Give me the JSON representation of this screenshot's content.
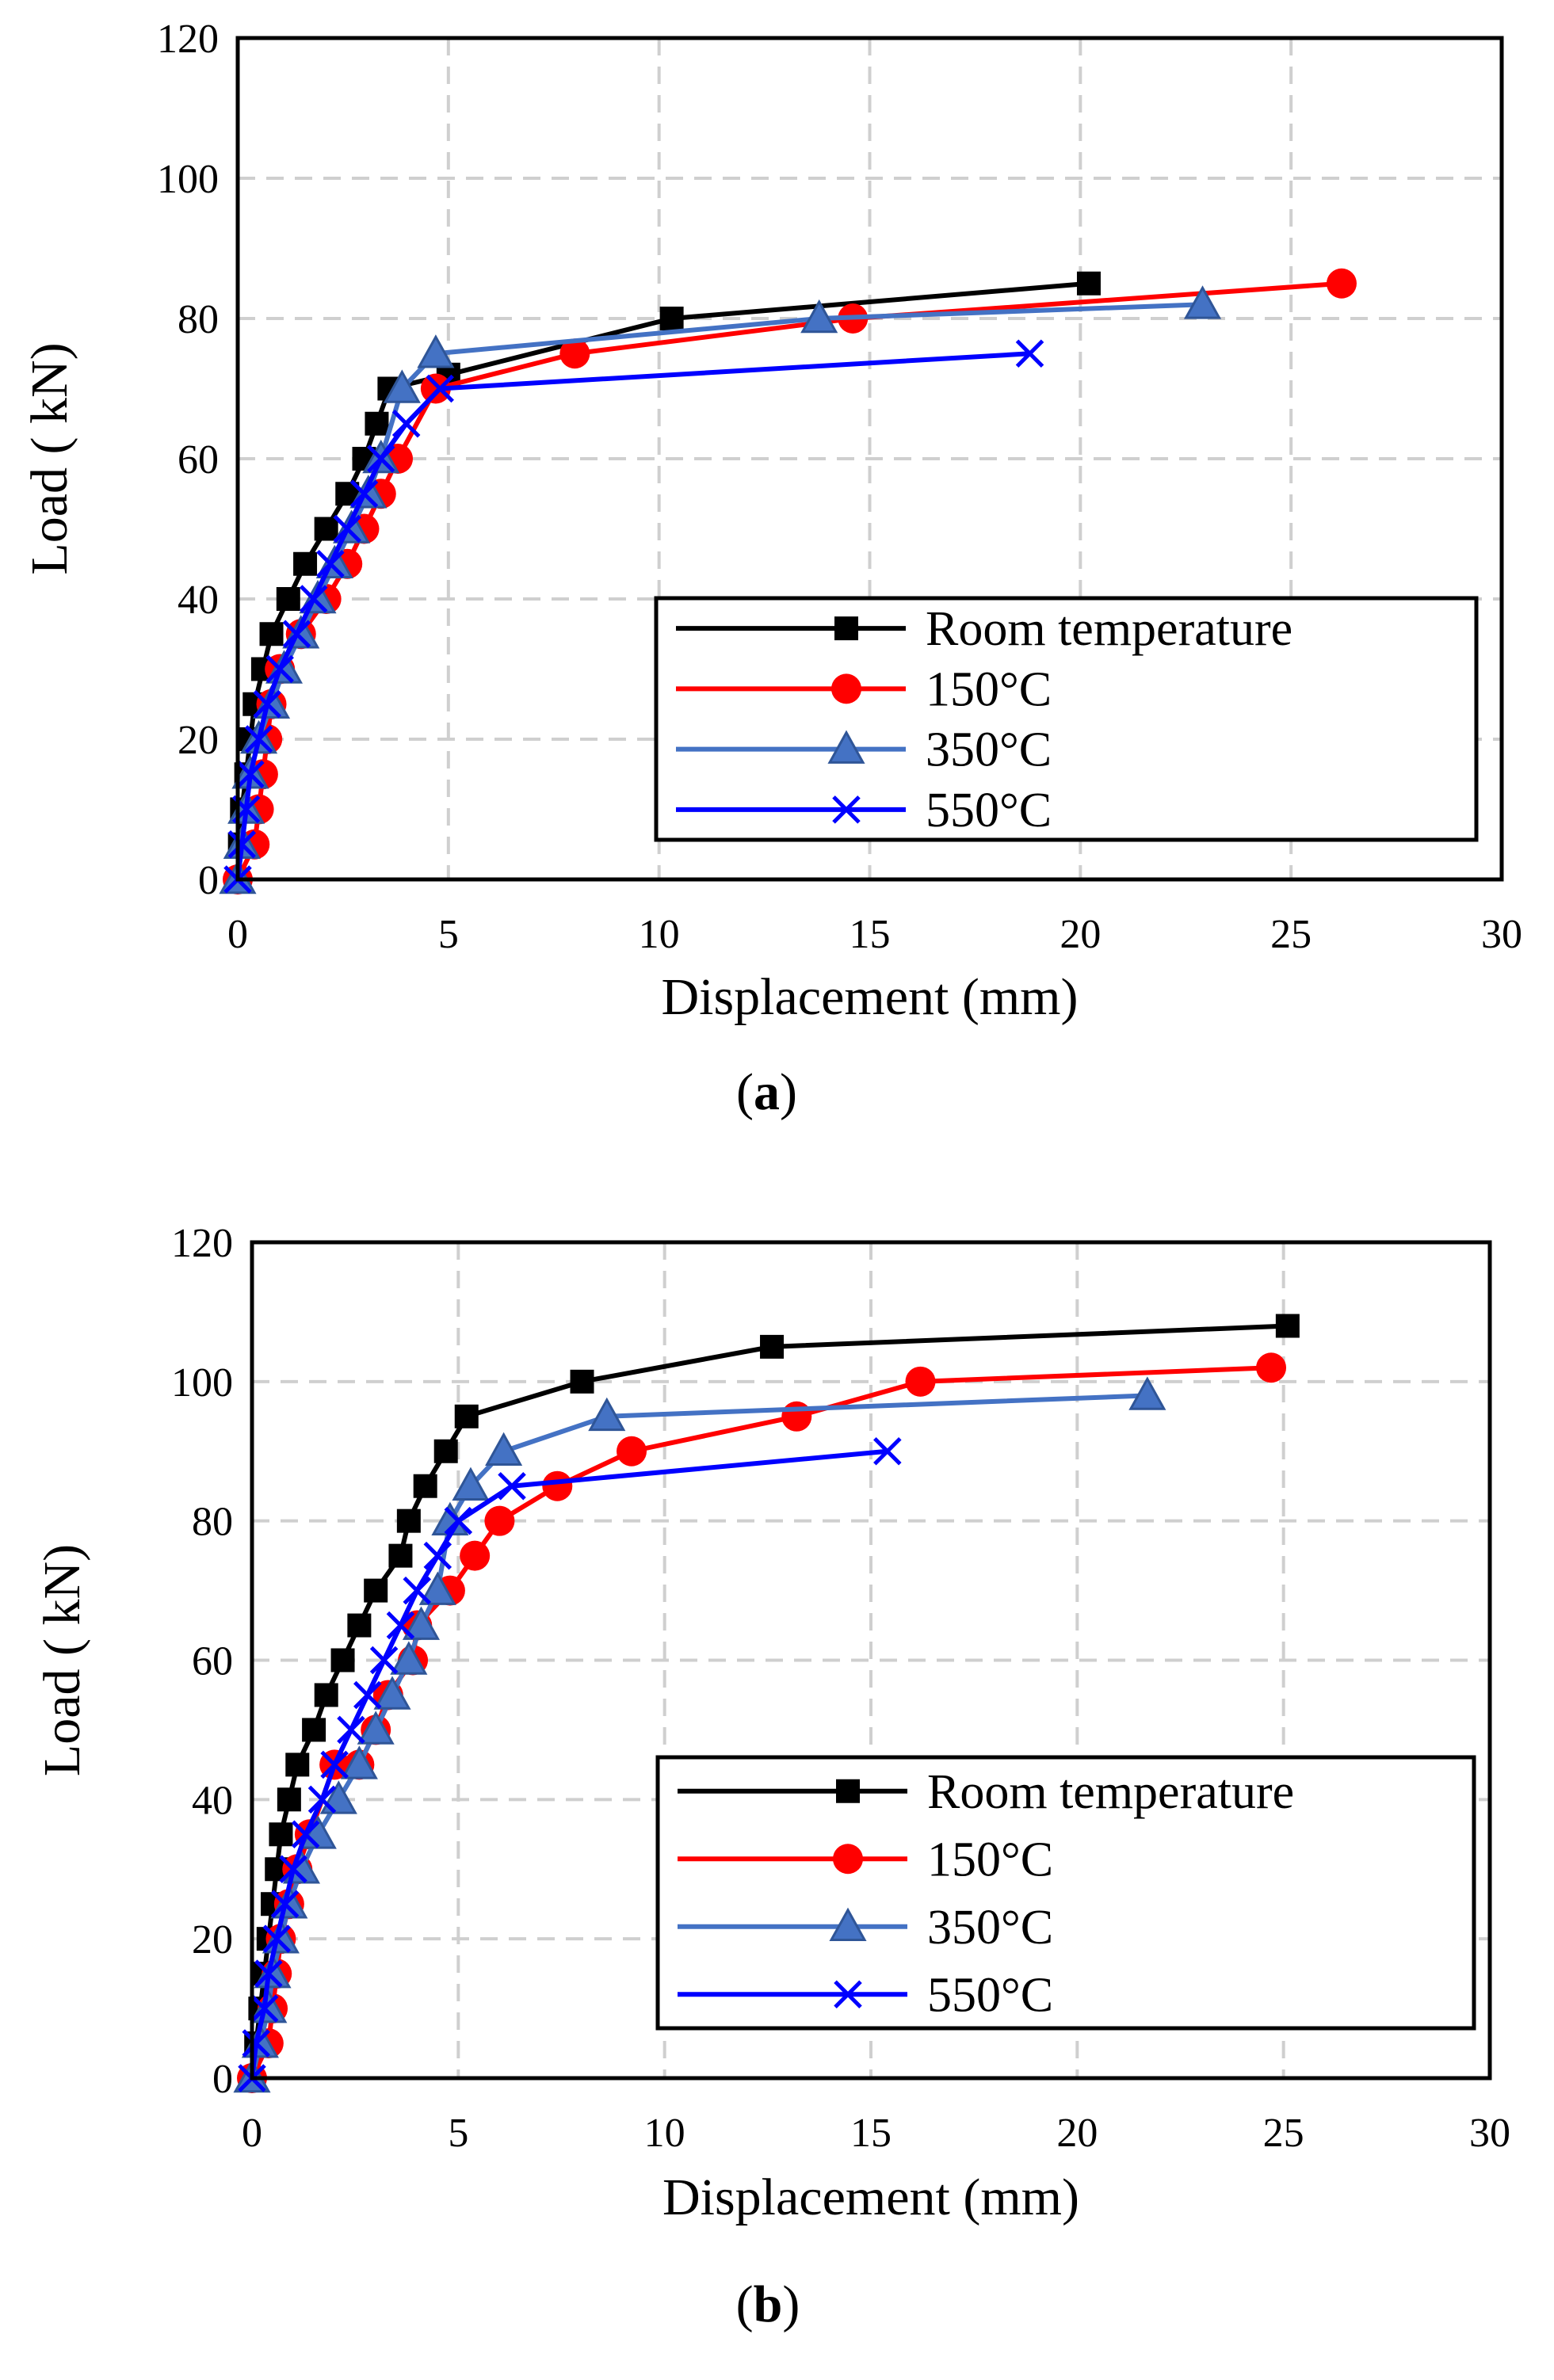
{
  "chart_data": [
    {
      "type": "line",
      "panel_label": "a",
      "xlabel": "Displacement (mm)",
      "ylabel": "Load ( kN)",
      "xlim": [
        0,
        30
      ],
      "ylim": [
        0,
        120
      ],
      "x_ticks": [
        0,
        5,
        10,
        15,
        20,
        25,
        30
      ],
      "y_ticks": [
        0,
        20,
        40,
        60,
        80,
        100,
        120
      ],
      "grid": "dashed",
      "legend_position": "bottom-right",
      "series": [
        {
          "name": "Room temperature",
          "color": "#000000",
          "marker": "square",
          "x": [
            0.0,
            0.05,
            0.1,
            0.2,
            0.3,
            0.4,
            0.6,
            0.8,
            1.2,
            1.6,
            2.1,
            2.6,
            3.0,
            3.3,
            3.6,
            5.0,
            10.3,
            20.2
          ],
          "y": [
            0,
            5,
            10,
            15,
            20,
            25,
            30,
            35,
            40,
            45,
            50,
            55,
            60,
            65,
            70,
            72,
            80,
            85
          ]
        },
        {
          "name": "150°C",
          "color": "#ff0000",
          "marker": "circle",
          "x": [
            0.0,
            0.4,
            0.5,
            0.6,
            0.7,
            0.8,
            1.0,
            1.5,
            2.1,
            2.6,
            3.0,
            3.4,
            3.8,
            4.7,
            8.0,
            14.6,
            26.2
          ],
          "y": [
            0,
            5,
            10,
            15,
            20,
            25,
            30,
            35,
            40,
            45,
            50,
            55,
            60,
            70,
            75,
            80,
            85
          ]
        },
        {
          "name": "350°C",
          "color": "#4472c4",
          "marker": "triangle",
          "x": [
            0.0,
            0.1,
            0.2,
            0.3,
            0.5,
            0.8,
            1.1,
            1.5,
            1.9,
            2.3,
            2.7,
            3.1,
            3.4,
            3.9,
            4.7,
            13.8,
            22.9
          ],
          "y": [
            0,
            5,
            10,
            15,
            20,
            25,
            30,
            35,
            40,
            45,
            50,
            55,
            60,
            70,
            75,
            80,
            82
          ]
        },
        {
          "name": "550°C",
          "color": "#0000ff",
          "marker": "x",
          "x": [
            0.0,
            0.1,
            0.2,
            0.3,
            0.5,
            0.7,
            1.0,
            1.4,
            1.8,
            2.2,
            2.6,
            3.0,
            3.4,
            4.0,
            4.8,
            18.8
          ],
          "y": [
            0,
            5,
            10,
            15,
            20,
            25,
            30,
            35,
            40,
            45,
            50,
            55,
            60,
            65,
            70,
            75
          ]
        }
      ]
    },
    {
      "type": "line",
      "panel_label": "b",
      "xlabel": "Displacement (mm)",
      "ylabel": "Load ( kN)",
      "xlim": [
        0,
        30
      ],
      "ylim": [
        0,
        120
      ],
      "x_ticks": [
        0,
        5,
        10,
        15,
        20,
        25,
        30
      ],
      "y_ticks": [
        0,
        20,
        40,
        60,
        80,
        100,
        120
      ],
      "grid": "dashed",
      "legend_position": "bottom-right",
      "series": [
        {
          "name": "Room temperature",
          "color": "#000000",
          "marker": "square",
          "x": [
            0.0,
            0.1,
            0.2,
            0.3,
            0.4,
            0.5,
            0.6,
            0.7,
            0.9,
            1.1,
            1.5,
            1.8,
            2.2,
            2.6,
            3.0,
            3.6,
            3.8,
            4.2,
            4.7,
            5.2,
            8.0,
            12.6,
            25.1
          ],
          "y": [
            0,
            5,
            10,
            15,
            20,
            25,
            30,
            35,
            40,
            45,
            50,
            55,
            60,
            65,
            70,
            75,
            80,
            85,
            90,
            95,
            100,
            105,
            108
          ]
        },
        {
          "name": "150°C",
          "color": "#ff0000",
          "marker": "circle",
          "x": [
            0.0,
            0.4,
            0.5,
            0.6,
            0.7,
            0.9,
            1.1,
            1.4,
            2.0,
            2.6,
            3.0,
            3.3,
            3.9,
            4.0,
            4.8,
            5.4,
            6.0,
            7.4,
            9.2,
            13.2,
            16.2,
            24.7
          ],
          "y": [
            0,
            5,
            10,
            15,
            20,
            25,
            30,
            35,
            45,
            45,
            50,
            55,
            60,
            65,
            70,
            75,
            80,
            85,
            90,
            95,
            100,
            102
          ]
        },
        {
          "name": "350°C",
          "color": "#4472c4",
          "marker": "triangle",
          "x": [
            0.0,
            0.2,
            0.4,
            0.5,
            0.7,
            0.9,
            1.2,
            1.6,
            2.1,
            2.6,
            3.0,
            3.4,
            3.8,
            4.1,
            4.5,
            4.8,
            5.3,
            6.1,
            8.6,
            21.7
          ],
          "y": [
            0,
            5,
            10,
            15,
            20,
            25,
            30,
            35,
            40,
            45,
            50,
            55,
            60,
            65,
            70,
            80,
            85,
            90,
            95,
            98
          ]
        },
        {
          "name": "550°C",
          "color": "#0000ff",
          "marker": "x",
          "x": [
            0.0,
            0.1,
            0.3,
            0.4,
            0.6,
            0.8,
            1.0,
            1.3,
            1.7,
            2.0,
            2.4,
            2.8,
            3.2,
            3.6,
            4.0,
            4.5,
            5.0,
            6.3,
            15.4
          ],
          "y": [
            0,
            5,
            10,
            15,
            20,
            25,
            30,
            35,
            40,
            45,
            50,
            55,
            60,
            65,
            70,
            75,
            80,
            85,
            90
          ]
        }
      ]
    }
  ]
}
